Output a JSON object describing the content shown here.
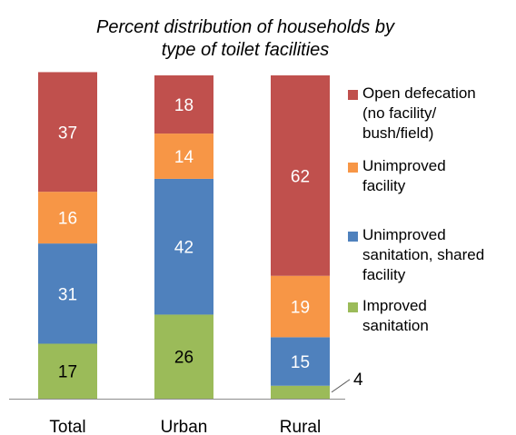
{
  "chart_data": {
    "type": "bar",
    "stacked": true,
    "title": [
      "Percent distribution of households by",
      "type of toilet facilities"
    ],
    "categories": [
      "Total",
      "Urban",
      "Rural"
    ],
    "series": [
      {
        "name": "Improved sanitation",
        "values": [
          17,
          26,
          4
        ],
        "color": "#9bbb59",
        "label_color": "#000000"
      },
      {
        "name": "Unimproved sanitation, shared facility",
        "values": [
          31,
          42,
          15
        ],
        "color": "#4f81bd",
        "label_color": "#ffffff"
      },
      {
        "name": "Unimproved facility",
        "values": [
          16,
          14,
          19
        ],
        "color": "#f79646",
        "label_color": "#ffffff"
      },
      {
        "name": "Open defecation (no facility/ bush/field)",
        "values": [
          37,
          18,
          62
        ],
        "color": "#c0504d",
        "label_color": "#ffffff"
      }
    ],
    "ylim": [
      0,
      100
    ],
    "grid": false,
    "legend_position": "right"
  },
  "legend": [
    {
      "lines": [
        "Open defecation",
        "(no facility/",
        "bush/field)"
      ],
      "color": "#c0504d"
    },
    {
      "lines": [
        "Unimproved",
        "facility"
      ],
      "color": "#f79646"
    },
    {
      "lines": [
        "Unimproved",
        "sanitation, shared",
        "facility"
      ],
      "color": "#4f81bd"
    },
    {
      "lines": [
        "Improved",
        "sanitation"
      ],
      "color": "#9bbb59"
    }
  ]
}
